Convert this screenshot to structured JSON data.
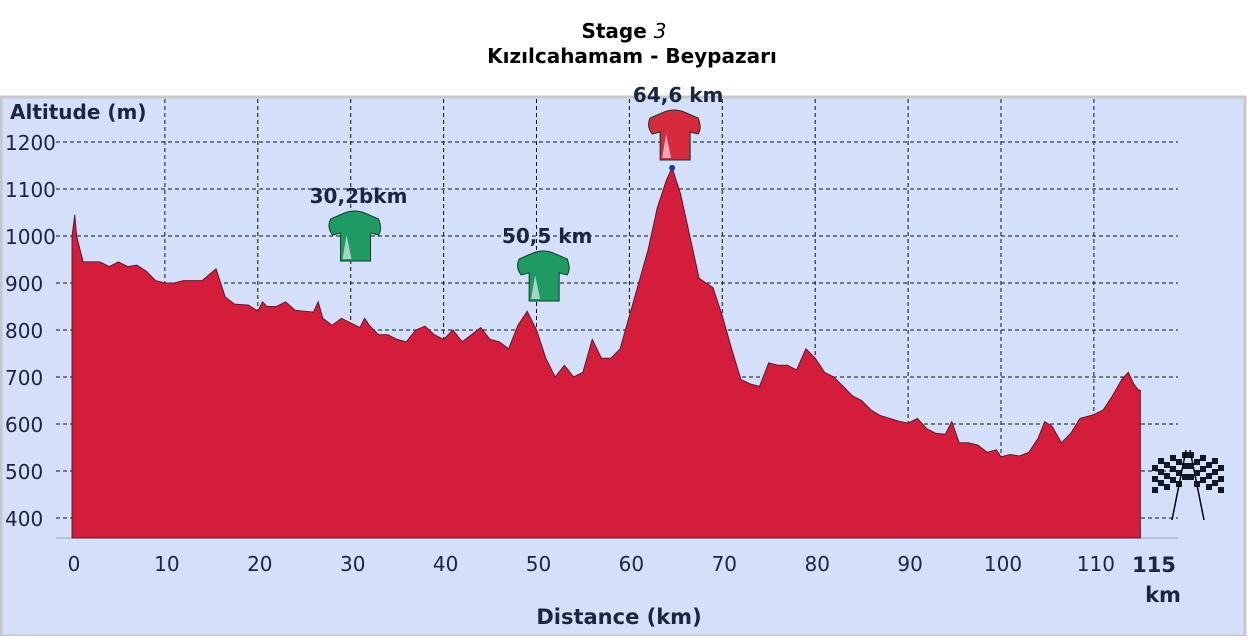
{
  "chart_data": {
    "type": "area",
    "title_prefix": "Stage ",
    "title_number": "3",
    "subtitle": "Kızılcahamam - Beypazarı",
    "ylabel": "Altitude (m)",
    "xlabel": "Distance (km)",
    "ylim": [
      358,
      1250
    ],
    "xlim": [
      0,
      115
    ],
    "grid": true,
    "yticks": [
      "1200",
      "1100",
      "1000",
      "900",
      "800",
      "700",
      "600",
      "500",
      "400"
    ],
    "ytick_values": [
      1200,
      1100,
      1000,
      900,
      800,
      700,
      600,
      500,
      400
    ],
    "xticks": [
      "0",
      "10",
      "20",
      "30",
      "40",
      "50",
      "60",
      "70",
      "80",
      "90",
      "100",
      "110"
    ],
    "xtick_values": [
      0,
      10,
      20,
      30,
      40,
      50,
      60,
      70,
      80,
      90,
      100,
      110
    ],
    "finish_label": "115",
    "finish_unit": "km",
    "colors": {
      "fill": "#d41c3b",
      "background": "#d4e0fa",
      "text": "#1a2540",
      "kom_green": "#1f9a62",
      "kom_red": "#d42a3c"
    },
    "profile": [
      [
        0,
        1000
      ],
      [
        0.3,
        1045
      ],
      [
        0.5,
        1000
      ],
      [
        1,
        960
      ],
      [
        1.2,
        945
      ],
      [
        3,
        945
      ],
      [
        4,
        935
      ],
      [
        5,
        945
      ],
      [
        6,
        935
      ],
      [
        7,
        938
      ],
      [
        8,
        925
      ],
      [
        9,
        905
      ],
      [
        10,
        900
      ],
      [
        11,
        900
      ],
      [
        12,
        905
      ],
      [
        14,
        905
      ],
      [
        15.5,
        930
      ],
      [
        16.5,
        870
      ],
      [
        17.5,
        855
      ],
      [
        19,
        853
      ],
      [
        20,
        840
      ],
      [
        20.5,
        860
      ],
      [
        21,
        850
      ],
      [
        22,
        850
      ],
      [
        23,
        860
      ],
      [
        24,
        842
      ],
      [
        25,
        840
      ],
      [
        26,
        838
      ],
      [
        26.5,
        860
      ],
      [
        27,
        825
      ],
      [
        28,
        810
      ],
      [
        29,
        825
      ],
      [
        30,
        815
      ],
      [
        31,
        805
      ],
      [
        31.5,
        825
      ],
      [
        32,
        810
      ],
      [
        33,
        790
      ],
      [
        34,
        790
      ],
      [
        35,
        780
      ],
      [
        36,
        775
      ],
      [
        37,
        800
      ],
      [
        38,
        808
      ],
      [
        39,
        790
      ],
      [
        40,
        780
      ],
      [
        41,
        800
      ],
      [
        42,
        775
      ],
      [
        43,
        790
      ],
      [
        44,
        805
      ],
      [
        45,
        780
      ],
      [
        46,
        775
      ],
      [
        47,
        760
      ],
      [
        48,
        810
      ],
      [
        49,
        840
      ],
      [
        50,
        800
      ],
      [
        51,
        740
      ],
      [
        52,
        700
      ],
      [
        53,
        725
      ],
      [
        54,
        700
      ],
      [
        55,
        710
      ],
      [
        56,
        780
      ],
      [
        57,
        740
      ],
      [
        58,
        740
      ],
      [
        59,
        760
      ],
      [
        60,
        830
      ],
      [
        61,
        900
      ],
      [
        62,
        970
      ],
      [
        63,
        1060
      ],
      [
        64,
        1120
      ],
      [
        64.6,
        1145
      ],
      [
        65.5,
        1090
      ],
      [
        66.5,
        1000
      ],
      [
        67.5,
        910
      ],
      [
        69,
        890
      ],
      [
        70,
        830
      ],
      [
        71,
        760
      ],
      [
        72,
        695
      ],
      [
        73,
        685
      ],
      [
        74,
        680
      ],
      [
        75,
        730
      ],
      [
        76,
        725
      ],
      [
        77,
        725
      ],
      [
        78,
        715
      ],
      [
        79,
        760
      ],
      [
        80,
        740
      ],
      [
        81,
        710
      ],
      [
        82,
        700
      ],
      [
        83,
        680
      ],
      [
        84,
        660
      ],
      [
        85,
        650
      ],
      [
        86,
        630
      ],
      [
        87,
        618
      ],
      [
        88,
        612
      ],
      [
        89,
        606
      ],
      [
        90,
        602
      ],
      [
        91,
        612
      ],
      [
        92,
        590
      ],
      [
        93,
        580
      ],
      [
        94,
        578
      ],
      [
        94.7,
        605
      ],
      [
        95.5,
        560
      ],
      [
        96.5,
        560
      ],
      [
        97.5,
        555
      ],
      [
        98.5,
        540
      ],
      [
        99.5,
        545
      ],
      [
        100,
        530
      ],
      [
        101,
        535
      ],
      [
        102,
        532
      ],
      [
        103,
        540
      ],
      [
        104,
        570
      ],
      [
        104.7,
        605
      ],
      [
        105.5,
        595
      ],
      [
        106.5,
        560
      ],
      [
        107.5,
        580
      ],
      [
        108.5,
        612
      ],
      [
        110,
        620
      ],
      [
        111,
        630
      ],
      [
        112,
        660
      ],
      [
        113,
        695
      ],
      [
        113.7,
        710
      ],
      [
        114.3,
        685
      ],
      [
        114.8,
        672
      ],
      [
        115,
        672
      ]
    ],
    "climbs": [
      {
        "label": "30,2bkm",
        "km": 30.2,
        "jersey": "green",
        "alt": 900
      },
      {
        "label": "50,5 km",
        "km": 50.5,
        "jersey": "green",
        "alt": 815
      },
      {
        "label": "64,6 km",
        "km": 64.6,
        "jersey": "red",
        "alt": 1145
      }
    ]
  }
}
